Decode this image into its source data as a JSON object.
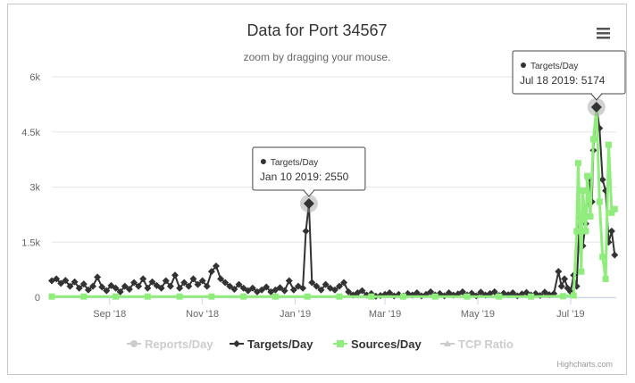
{
  "chart_data": {
    "type": "line",
    "title": "Data for Port 34567",
    "subtitle": "zoom by dragging your mouse.",
    "menu_icon": "hamburger-menu-icon",
    "credits": "Highcharts.com",
    "xlabel": "",
    "ylabel": "",
    "x_range": [
      "2018-07-25",
      "2019-07-31"
    ],
    "ylim": [
      0,
      6000
    ],
    "y_ticks": [
      {
        "value": 0,
        "label": "0"
      },
      {
        "value": 1500,
        "label": "1.5k"
      },
      {
        "value": 3000,
        "label": "3k"
      },
      {
        "value": 4500,
        "label": "4.5k"
      },
      {
        "value": 6000,
        "label": "6k"
      }
    ],
    "x_ticks": [
      {
        "value": "2018-09-01",
        "label": "Sep '18"
      },
      {
        "value": "2018-11-01",
        "label": "Nov '18"
      },
      {
        "value": "2019-01-01",
        "label": "Jan '19"
      },
      {
        "value": "2019-03-01",
        "label": "Mar '19"
      },
      {
        "value": "2019-05-01",
        "label": "May '19"
      },
      {
        "value": "2019-07-01",
        "label": "Jul '19"
      }
    ],
    "grid": true,
    "legend_position": "bottom-center",
    "legend": [
      {
        "name": "Reports/Day",
        "color": "#cccccc",
        "marker": "circle",
        "visible": false
      },
      {
        "name": "Targets/Day",
        "color": "#333333",
        "marker": "diamond",
        "visible": true
      },
      {
        "name": "Sources/Day",
        "color": "#90ed7d",
        "marker": "square",
        "visible": true
      },
      {
        "name": "TCP Ratio",
        "color": "#cccccc",
        "marker": "triangle",
        "visible": false
      }
    ],
    "series": [
      {
        "name": "Targets/Day",
        "color": "#333333",
        "points": [
          [
            "2018-07-25",
            450
          ],
          [
            "2018-07-28",
            500
          ],
          [
            "2018-07-31",
            380
          ],
          [
            "2018-08-03",
            460
          ],
          [
            "2018-08-06",
            300
          ],
          [
            "2018-08-09",
            420
          ],
          [
            "2018-08-12",
            250
          ],
          [
            "2018-08-15",
            360
          ],
          [
            "2018-08-18",
            200
          ],
          [
            "2018-08-21",
            300
          ],
          [
            "2018-08-24",
            550
          ],
          [
            "2018-08-27",
            280
          ],
          [
            "2018-08-30",
            180
          ],
          [
            "2018-09-02",
            320
          ],
          [
            "2018-09-05",
            250
          ],
          [
            "2018-09-08",
            150
          ],
          [
            "2018-09-11",
            300
          ],
          [
            "2018-09-14",
            220
          ],
          [
            "2018-09-17",
            400
          ],
          [
            "2018-09-20",
            300
          ],
          [
            "2018-09-23",
            500
          ],
          [
            "2018-09-26",
            250
          ],
          [
            "2018-09-29",
            420
          ],
          [
            "2018-10-02",
            320
          ],
          [
            "2018-10-05",
            250
          ],
          [
            "2018-10-08",
            450
          ],
          [
            "2018-10-11",
            300
          ],
          [
            "2018-10-14",
            600
          ],
          [
            "2018-10-17",
            250
          ],
          [
            "2018-10-20",
            400
          ],
          [
            "2018-10-23",
            300
          ],
          [
            "2018-10-26",
            500
          ],
          [
            "2018-10-29",
            350
          ],
          [
            "2018-11-01",
            450
          ],
          [
            "2018-11-04",
            300
          ],
          [
            "2018-11-07",
            700
          ],
          [
            "2018-11-10",
            850
          ],
          [
            "2018-11-13",
            500
          ],
          [
            "2018-11-16",
            400
          ],
          [
            "2018-11-19",
            300
          ],
          [
            "2018-11-22",
            220
          ],
          [
            "2018-11-25",
            350
          ],
          [
            "2018-11-28",
            250
          ],
          [
            "2018-12-01",
            180
          ],
          [
            "2018-12-04",
            250
          ],
          [
            "2018-12-07",
            150
          ],
          [
            "2018-12-10",
            200
          ],
          [
            "2018-12-13",
            280
          ],
          [
            "2018-12-16",
            150
          ],
          [
            "2018-12-19",
            200
          ],
          [
            "2018-12-22",
            260
          ],
          [
            "2018-12-25",
            180
          ],
          [
            "2018-12-28",
            450
          ],
          [
            "2018-12-31",
            200
          ],
          [
            "2019-01-03",
            300
          ],
          [
            "2019-01-06",
            250
          ],
          [
            "2019-01-08",
            1800
          ],
          [
            "2019-01-10",
            2550
          ],
          [
            "2019-01-12",
            400
          ],
          [
            "2019-01-15",
            300
          ],
          [
            "2019-01-18",
            200
          ],
          [
            "2019-01-21",
            350
          ],
          [
            "2019-01-24",
            250
          ],
          [
            "2019-01-27",
            200
          ],
          [
            "2019-01-30",
            300
          ],
          [
            "2019-02-02",
            400
          ],
          [
            "2019-02-05",
            150
          ],
          [
            "2019-02-08",
            60
          ],
          [
            "2019-02-11",
            120
          ],
          [
            "2019-02-14",
            180
          ],
          [
            "2019-02-17",
            60
          ],
          [
            "2019-02-20",
            100
          ],
          [
            "2019-02-23",
            30
          ],
          [
            "2019-02-26",
            50
          ],
          [
            "2019-03-01",
            80
          ],
          [
            "2019-03-04",
            120
          ],
          [
            "2019-03-07",
            40
          ],
          [
            "2019-03-10",
            80
          ],
          [
            "2019-03-13",
            30
          ],
          [
            "2019-03-16",
            100
          ],
          [
            "2019-03-19",
            60
          ],
          [
            "2019-03-22",
            120
          ],
          [
            "2019-03-25",
            40
          ],
          [
            "2019-03-28",
            80
          ],
          [
            "2019-03-31",
            150
          ],
          [
            "2019-04-03",
            60
          ],
          [
            "2019-04-06",
            100
          ],
          [
            "2019-04-09",
            40
          ],
          [
            "2019-04-12",
            120
          ],
          [
            "2019-04-15",
            60
          ],
          [
            "2019-04-18",
            90
          ],
          [
            "2019-04-21",
            150
          ],
          [
            "2019-04-24",
            60
          ],
          [
            "2019-04-27",
            110
          ],
          [
            "2019-04-30",
            40
          ],
          [
            "2019-05-03",
            140
          ],
          [
            "2019-05-06",
            60
          ],
          [
            "2019-05-09",
            100
          ],
          [
            "2019-05-12",
            150
          ],
          [
            "2019-05-15",
            50
          ],
          [
            "2019-05-18",
            110
          ],
          [
            "2019-05-21",
            70
          ],
          [
            "2019-05-24",
            120
          ],
          [
            "2019-05-27",
            40
          ],
          [
            "2019-05-30",
            90
          ],
          [
            "2019-06-02",
            130
          ],
          [
            "2019-06-05",
            60
          ],
          [
            "2019-06-08",
            100
          ],
          [
            "2019-06-11",
            50
          ],
          [
            "2019-06-14",
            140
          ],
          [
            "2019-06-17",
            70
          ],
          [
            "2019-06-20",
            100
          ],
          [
            "2019-06-23",
            700
          ],
          [
            "2019-06-25",
            300
          ],
          [
            "2019-06-27",
            500
          ],
          [
            "2019-06-29",
            250
          ],
          [
            "2019-07-01",
            150
          ],
          [
            "2019-07-03",
            600
          ],
          [
            "2019-07-05",
            300
          ],
          [
            "2019-07-07",
            2200
          ],
          [
            "2019-07-09",
            1400
          ],
          [
            "2019-07-11",
            2000
          ],
          [
            "2019-07-13",
            3200
          ],
          [
            "2019-07-15",
            2600
          ],
          [
            "2019-07-16",
            4000
          ],
          [
            "2019-07-18",
            5174
          ],
          [
            "2019-07-20",
            4600
          ],
          [
            "2019-07-22",
            3200
          ],
          [
            "2019-07-24",
            2900
          ],
          [
            "2019-07-26",
            1500
          ],
          [
            "2019-07-28",
            1800
          ],
          [
            "2019-07-30",
            1150
          ]
        ]
      },
      {
        "name": "Sources/Day",
        "color": "#90ed7d",
        "points": [
          [
            "2018-07-25",
            20
          ],
          [
            "2018-08-15",
            20
          ],
          [
            "2018-09-05",
            20
          ],
          [
            "2018-09-26",
            20
          ],
          [
            "2018-10-17",
            20
          ],
          [
            "2018-11-07",
            20
          ],
          [
            "2018-11-28",
            20
          ],
          [
            "2018-12-19",
            20
          ],
          [
            "2019-01-09",
            20
          ],
          [
            "2019-01-30",
            20
          ],
          [
            "2019-02-20",
            20
          ],
          [
            "2019-03-13",
            20
          ],
          [
            "2019-04-03",
            20
          ],
          [
            "2019-04-24",
            20
          ],
          [
            "2019-05-15",
            20
          ],
          [
            "2019-06-05",
            20
          ],
          [
            "2019-06-26",
            30
          ],
          [
            "2019-07-03",
            50
          ],
          [
            "2019-07-05",
            1800
          ],
          [
            "2019-07-06",
            3650
          ],
          [
            "2019-07-08",
            700
          ],
          [
            "2019-07-09",
            2900
          ],
          [
            "2019-07-11",
            1800
          ],
          [
            "2019-07-12",
            3300
          ],
          [
            "2019-07-14",
            2200
          ],
          [
            "2019-07-16",
            4300
          ],
          [
            "2019-07-18",
            5150
          ],
          [
            "2019-07-20",
            2600
          ],
          [
            "2019-07-22",
            1100
          ],
          [
            "2019-07-24",
            500
          ],
          [
            "2019-07-26",
            4150
          ],
          [
            "2019-07-28",
            2300
          ],
          [
            "2019-07-30",
            2400
          ]
        ]
      }
    ],
    "tooltips": [
      {
        "series": "Targets/Day",
        "date": "2019-01-10",
        "value": 2550,
        "label": "Jan 10 2019: 2550"
      },
      {
        "series": "Targets/Day",
        "date": "2019-07-18",
        "value": 5174,
        "label": "Jul 18 2019: 5174"
      }
    ]
  }
}
